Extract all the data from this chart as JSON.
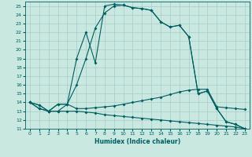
{
  "xlabel": "Humidex (Indice chaleur)",
  "xlim": [
    -0.5,
    23.5
  ],
  "ylim": [
    11,
    25.5
  ],
  "yticks": [
    11,
    12,
    13,
    14,
    15,
    16,
    17,
    18,
    19,
    20,
    21,
    22,
    23,
    24,
    25
  ],
  "xticks": [
    0,
    1,
    2,
    3,
    4,
    5,
    6,
    7,
    8,
    9,
    10,
    11,
    12,
    13,
    14,
    15,
    16,
    17,
    18,
    19,
    20,
    21,
    22,
    23
  ],
  "bg_color": "#c8e8e0",
  "grid_color": "#a8ccc8",
  "line_color": "#006060",
  "line1": [
    14.0,
    13.7,
    13.0,
    13.8,
    13.8,
    19.0,
    22.0,
    18.5,
    25.0,
    25.2,
    25.1,
    24.8,
    24.7,
    24.5,
    23.2,
    22.6,
    22.8,
    21.5,
    15.0,
    15.3,
    13.3,
    11.8,
    11.5,
    11.0
  ],
  "line2": [
    14.0,
    13.7,
    13.0,
    13.8,
    13.8,
    16.0,
    19.0,
    22.5,
    24.2,
    25.0,
    25.1,
    24.8,
    24.7,
    24.5,
    23.2,
    22.6,
    22.8,
    21.5,
    15.0,
    15.3,
    13.3,
    11.8,
    11.5,
    11.0
  ],
  "line3": [
    14.0,
    13.3,
    13.0,
    13.0,
    13.8,
    13.3,
    13.3,
    13.4,
    13.5,
    13.6,
    13.8,
    14.0,
    14.2,
    14.4,
    14.6,
    14.9,
    15.2,
    15.4,
    15.5,
    15.5,
    13.5,
    13.4,
    13.3,
    13.2
  ],
  "line4": [
    14.0,
    13.3,
    13.0,
    13.0,
    13.0,
    13.0,
    12.9,
    12.8,
    12.6,
    12.5,
    12.4,
    12.3,
    12.2,
    12.1,
    12.0,
    11.9,
    11.8,
    11.7,
    11.6,
    11.5,
    11.4,
    11.3,
    11.2,
    11.0
  ]
}
